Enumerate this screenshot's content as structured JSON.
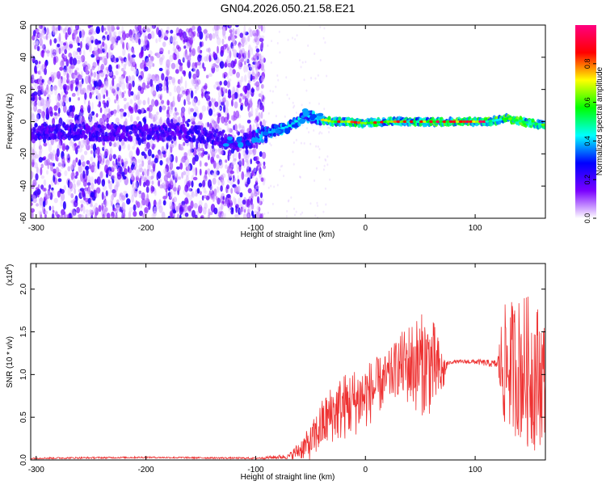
{
  "title": "GN04.2026.050.21.58.E21",
  "colors": {
    "snr_line": "#ee3333"
  },
  "chart_data": [
    {
      "type": "heatmap",
      "xlabel": "Height of straight line (km)",
      "ylabel": "Frequency (Hz)",
      "xlim": [
        -305,
        164
      ],
      "ylim": [
        -60,
        60
      ],
      "x_ticks": [
        -300,
        -200,
        -100,
        0,
        100
      ],
      "y_ticks": [
        -60,
        -40,
        -20,
        0,
        20,
        40,
        60
      ],
      "colorbar": {
        "label": "Normalized spectral amplitude",
        "range": [
          0,
          1
        ],
        "ticks": [
          "0.0",
          "0.2",
          "0.4",
          "0.6",
          "0.8"
        ],
        "tick_values": [
          0.0,
          0.2,
          0.4,
          0.6,
          0.8
        ],
        "colormap": [
          "#ffffff",
          "#7a00ff",
          "#0000ff",
          "#00ffff",
          "#00ff00",
          "#ffff00",
          "#ff0000",
          "#ff0080"
        ]
      },
      "ridge": {
        "x": [
          -260,
          -230,
          -200,
          -170,
          -140,
          -120,
          -100,
          -85,
          -70,
          -55,
          -45,
          -30,
          -15,
          0,
          20,
          50,
          80,
          110,
          130,
          150,
          164
        ],
        "y": [
          -6,
          -7,
          -7,
          -6,
          -9,
          -14,
          -10,
          -6,
          -3,
          4,
          2,
          0,
          0,
          -1,
          0,
          0,
          0,
          0,
          2,
          -1,
          -2
        ]
      },
      "noise_region_x": [
        -305,
        -92
      ]
    },
    {
      "type": "line",
      "xlabel": "Height of straight line (km)",
      "ylabel": "SNR (10 * v/v)",
      "multiplier_label": "(x10",
      "multiplier_exp": "4",
      "xlim": [
        -305,
        164
      ],
      "ylim": [
        0,
        2.3
      ],
      "x_ticks": [
        -300,
        -200,
        -100,
        0,
        100
      ],
      "y_ticks": [
        0.0,
        0.5,
        1.0,
        1.5,
        2.0
      ],
      "series": [
        {
          "envelope_x": [
            -305,
            -200,
            -100,
            -70,
            -50,
            -40,
            -30,
            -20,
            -10,
            0,
            10,
            20,
            30,
            40,
            50,
            60,
            70,
            75,
            80,
            100,
            120,
            125,
            135,
            145,
            155,
            164
          ],
          "envelope_y": [
            0.02,
            0.03,
            0.02,
            0.04,
            0.2,
            0.4,
            0.55,
            0.62,
            0.68,
            0.75,
            0.85,
            0.95,
            1.1,
            1.12,
            1.12,
            1.12,
            1.0,
            1.13,
            1.15,
            1.15,
            1.12,
            1.1,
            1.1,
            1.05,
            1.0,
            0.95
          ],
          "noise_amp": [
            0.01,
            0.01,
            0.01,
            0.03,
            0.2,
            0.3,
            0.35,
            0.4,
            0.4,
            0.4,
            0.35,
            0.3,
            0.35,
            0.5,
            0.6,
            0.6,
            0.3,
            0.02,
            0.02,
            0.03,
            0.05,
            0.7,
            0.8,
            0.9,
            0.9,
            0.7
          ]
        }
      ]
    }
  ]
}
